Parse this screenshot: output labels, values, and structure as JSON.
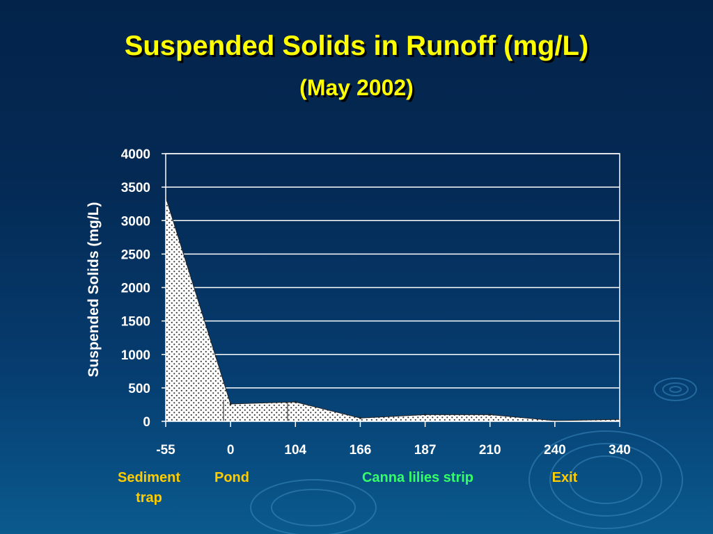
{
  "slide": {
    "title": "Suspended Solids in Runoff (mg/L)",
    "subtitle": "(May 2002)"
  },
  "colors": {
    "title": "#ffff00",
    "zone_yellow": "#ffcc00",
    "zone_green": "#33ff66",
    "axis_text": "#ffffff",
    "gridline": "#ffffff"
  },
  "chart_data": {
    "type": "area",
    "title": "",
    "xlabel": "",
    "ylabel": "Suspended Solids (mg/L)",
    "categories": [
      "-55",
      "0",
      "104",
      "166",
      "187",
      "210",
      "240",
      "340"
    ],
    "values": [
      3350,
      260,
      290,
      50,
      100,
      100,
      10,
      30
    ],
    "ylim": [
      0,
      4000
    ],
    "yticks": [
      "0",
      "500",
      "1000",
      "1500",
      "2000",
      "2500",
      "3000",
      "3500",
      "4000"
    ],
    "grid": true,
    "fill": "stippled white"
  },
  "zones": [
    {
      "line1": "Sediment",
      "line2": "trap",
      "color": "#ffcc00"
    },
    {
      "line1": "Pond",
      "line2": "",
      "color": "#ffcc00"
    },
    {
      "line1": "Canna lilies strip",
      "line2": "",
      "color": "#33ff66"
    },
    {
      "line1": "Exit",
      "line2": "",
      "color": "#ffcc00"
    }
  ]
}
